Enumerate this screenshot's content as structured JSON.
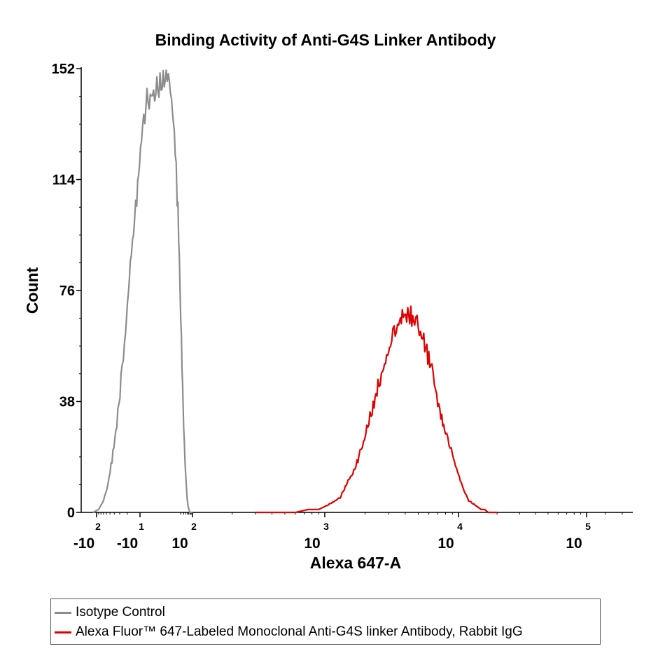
{
  "chart_data": {
    "type": "area",
    "title": "Binding Activity of Anti-G4S Linker Antibody",
    "xlabel": "Alexa 647-A",
    "ylabel": "Count",
    "x_scale": "biexponential",
    "ylim": [
      0,
      152
    ],
    "y_ticks": [
      "0",
      "38",
      "76",
      "114",
      "152"
    ],
    "x_ticks": [
      {
        "base": "-10",
        "exp": "2",
        "value": -100
      },
      {
        "base": "-10",
        "exp": "1",
        "value": -10
      },
      {
        "base": "10",
        "exp": "2",
        "value": 100
      },
      {
        "base": "10",
        "exp": "3",
        "value": 1000
      },
      {
        "base": "10",
        "exp": "4",
        "value": 10000
      },
      {
        "base": "10",
        "exp": "5",
        "value": 100000
      }
    ],
    "legend_position": "bottom",
    "series": [
      {
        "name": "Isotype Control",
        "color": "#8c8c8c",
        "x": [
          -120,
          -90,
          -70,
          -55,
          -45,
          -35,
          -28,
          -22,
          -17,
          -12,
          -8,
          -4,
          0,
          3,
          6,
          9,
          12,
          15,
          18,
          22,
          26,
          30,
          36,
          42,
          48,
          55,
          62,
          70,
          80,
          90,
          100
        ],
        "y": [
          0,
          1,
          4,
          10,
          18,
          30,
          45,
          62,
          85,
          108,
          128,
          140,
          145,
          150,
          138,
          125,
          108,
          95,
          78,
          60,
          44,
          30,
          18,
          10,
          5,
          2,
          1,
          0,
          0,
          0,
          0
        ]
      },
      {
        "name": "Alexa Fluor™ 647-Labeled Monoclonal Anti-G4S linker Antibody, Rabbit IgG",
        "color": "#e00000",
        "x": [
          300,
          450,
          600,
          750,
          900,
          1000,
          1100,
          1200,
          1300,
          1400,
          1500,
          1650,
          1800,
          1950,
          2100,
          2300,
          2500,
          2700,
          2900,
          3100,
          3300,
          3500,
          3800,
          4100,
          4400,
          4700,
          5000,
          5400,
          5800,
          6200,
          6600,
          7000,
          7500,
          8000,
          8500,
          9000,
          9500,
          10000,
          10500,
          11000,
          11500,
          12000,
          13000,
          14000,
          15000,
          16000,
          17000,
          18000,
          20000
        ],
        "y": [
          0,
          0,
          0,
          1,
          1,
          2,
          3,
          4,
          5,
          8,
          11,
          14,
          19,
          24,
          30,
          36,
          43,
          48,
          53,
          57,
          61,
          64,
          67,
          68,
          67,
          65,
          63,
          60,
          55,
          50,
          44,
          38,
          32,
          27,
          24,
          20,
          16,
          13,
          10,
          8,
          6,
          4,
          3,
          2,
          1,
          1,
          0,
          0,
          0
        ]
      }
    ]
  }
}
